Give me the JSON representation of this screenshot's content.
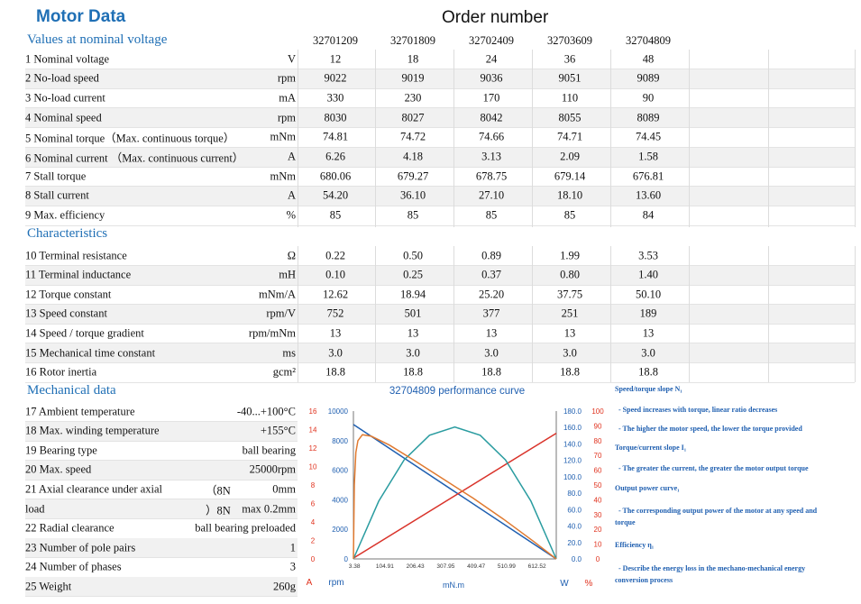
{
  "title": "Motor Data",
  "order_header": "Order number",
  "sections": {
    "nominal": "Values at nominal voltage",
    "characteristics": "Characteristics",
    "mechanical": "Mechanical data"
  },
  "order_numbers": [
    "32701209",
    "32701809",
    "32702409",
    "32703609",
    "32704809"
  ],
  "nominal_rows": [
    {
      "label": "1 Nominal voltage",
      "unit": "V",
      "values": [
        "12",
        "18",
        "24",
        "36",
        "48"
      ]
    },
    {
      "label": "2 No-load speed",
      "unit": "rpm",
      "values": [
        "9022",
        "9019",
        "9036",
        "9051",
        "9089"
      ]
    },
    {
      "label": "3 No-load current",
      "unit": "mA",
      "values": [
        "330",
        "230",
        "170",
        "110",
        "90"
      ]
    },
    {
      "label": "4 Nominal speed",
      "unit": "rpm",
      "values": [
        "8030",
        "8027",
        "8042",
        "8055",
        "8089"
      ]
    },
    {
      "label": "5 Nominal torque（Max. continuous torque）",
      "unit": "mNm",
      "values": [
        "74.81",
        "74.72",
        "74.66",
        "74.71",
        "74.45"
      ]
    },
    {
      "label": "6 Nominal current （Max. continuous current）",
      "unit": "A",
      "values": [
        "6.26",
        "4.18",
        "3.13",
        "2.09",
        "1.58"
      ]
    },
    {
      "label": "7 Stall torque",
      "unit": "mNm",
      "values": [
        "680.06",
        "679.27",
        "678.75",
        "679.14",
        "676.81"
      ]
    },
    {
      "label": "8 Stall current",
      "unit": "A",
      "values": [
        "54.20",
        "36.10",
        "27.10",
        "18.10",
        "13.60"
      ]
    },
    {
      "label": "9 Max. efficiency",
      "unit": "%",
      "values": [
        "85",
        "85",
        "85",
        "85",
        "84"
      ]
    }
  ],
  "char_rows": [
    {
      "label": "10 Terminal resistance",
      "unit": "Ω",
      "values": [
        "0.22",
        "0.50",
        "0.89",
        "1.99",
        "3.53"
      ]
    },
    {
      "label": "11 Terminal inductance",
      "unit": "mH",
      "values": [
        "0.10",
        "0.25",
        "0.37",
        "0.80",
        "1.40"
      ]
    },
    {
      "label": "12 Torque constant",
      "unit": "mNm/A",
      "values": [
        "12.62",
        "18.94",
        "25.20",
        "37.75",
        "50.10"
      ]
    },
    {
      "label": "13 Speed constant",
      "unit": "rpm/V",
      "values": [
        "752",
        "501",
        "377",
        "251",
        "189"
      ]
    },
    {
      "label": "14 Speed / torque gradient",
      "unit": "rpm/mNm",
      "values": [
        "13",
        "13",
        "13",
        "13",
        "13"
      ]
    },
    {
      "label": "15 Mechanical time constant",
      "unit": "ms",
      "values": [
        "3.0",
        "3.0",
        "3.0",
        "3.0",
        "3.0"
      ]
    },
    {
      "label": "16 Rotor inertia",
      "unit": "gcm²",
      "values": [
        "18.8",
        "18.8",
        "18.8",
        "18.8",
        "18.8"
      ]
    }
  ],
  "mech_rows": [
    {
      "label": "17 Ambient temperature",
      "value": "-40...+100°C"
    },
    {
      "label": "18 Max. winding temperature",
      "value": "+155°C"
    },
    {
      "label": "19 Bearing type",
      "value": "ball bearing"
    },
    {
      "label": "20 Max. speed",
      "value": "25000rpm"
    },
    {
      "label": "21 Axial clearance under axial",
      "mid": "（8N",
      "value": "0mm"
    },
    {
      "label": "load",
      "mid": "）8N",
      "value": "max 0.2mm"
    },
    {
      "label": "22 Radial clearance",
      "value": "ball bearing preloaded"
    },
    {
      "label": "23 Number of pole pairs",
      "value": "1"
    },
    {
      "label": "24 Number of phases",
      "value": "3"
    },
    {
      "label": "25 Weight",
      "value": "260g"
    }
  ],
  "chart_data": {
    "type": "line",
    "title": "32704809 performance curve",
    "x_ticks": [
      "3.38",
      "104.91",
      "206.43",
      "307.95",
      "409.47",
      "510.99",
      "612.52"
    ],
    "xlabel": "mN.m",
    "xlim": [
      0,
      676.81
    ],
    "axes": {
      "current_A": {
        "ticks": [
          "0",
          "2",
          "4",
          "6",
          "8",
          "10",
          "12",
          "14",
          "16"
        ],
        "label": "A",
        "range": [
          0,
          16
        ],
        "color": "#e0321e"
      },
      "speed_rpm": {
        "ticks": [
          "0",
          "2000",
          "4000",
          "6000",
          "8000",
          "10000"
        ],
        "label": "rpm",
        "range": [
          0,
          10000
        ],
        "color": "#1f5fb0"
      },
      "power_W": {
        "ticks": [
          "0.0",
          "20.0",
          "40.0",
          "60.0",
          "80.0",
          "100.0",
          "120.0",
          "140.0",
          "160.0",
          "180.0"
        ],
        "label": "W",
        "range": [
          0,
          180
        ],
        "color": "#1f5fb0"
      },
      "efficiency_pct": {
        "ticks": [
          "0",
          "10",
          "20",
          "30",
          "40",
          "50",
          "60",
          "70",
          "80",
          "90",
          "100"
        ],
        "label": "%",
        "range": [
          0,
          100
        ],
        "color": "#e0321e"
      }
    },
    "series": [
      {
        "name": "Speed",
        "color": "#1f5fb0",
        "axis": "speed_rpm",
        "x": [
          0,
          676.81
        ],
        "y": [
          9089,
          0
        ]
      },
      {
        "name": "Current",
        "color": "#d9332a",
        "axis": "current_A",
        "x": [
          0,
          676.81
        ],
        "y": [
          0.09,
          13.6
        ]
      },
      {
        "name": "Power",
        "color": "#2a9ca0",
        "axis": "power_W",
        "x": [
          0,
          84.6,
          169.2,
          253.8,
          338.4,
          423.0,
          507.6,
          592.2,
          676.81
        ],
        "y": [
          0,
          70.3,
          120.5,
          150.6,
          160.6,
          150.6,
          120.5,
          70.3,
          0
        ]
      },
      {
        "name": "Efficiency",
        "color": "#e07a30",
        "axis": "efficiency_pct",
        "x": [
          0,
          3,
          8,
          15,
          30,
          60,
          120,
          200,
          300,
          400,
          500,
          600,
          676.81
        ],
        "y": [
          0,
          50,
          72,
          80,
          84,
          83,
          77,
          67,
          54,
          41,
          27,
          12,
          0
        ]
      }
    ]
  },
  "notes": [
    "Speed/torque slope N₁",
    "- Speed increases with torque, linear ratio decreases",
    "- The higher the motor speed, the lower the torque provided",
    "Torque/current slope I₁",
    "- The greater the current, the greater the motor output torque",
    "Output power curve₁",
    "- The corresponding output power of the motor at any speed and",
    "torque",
    "Efficiency η₁",
    "- Describe the energy loss in the mechano-mechanical energy",
    "conversion process"
  ]
}
